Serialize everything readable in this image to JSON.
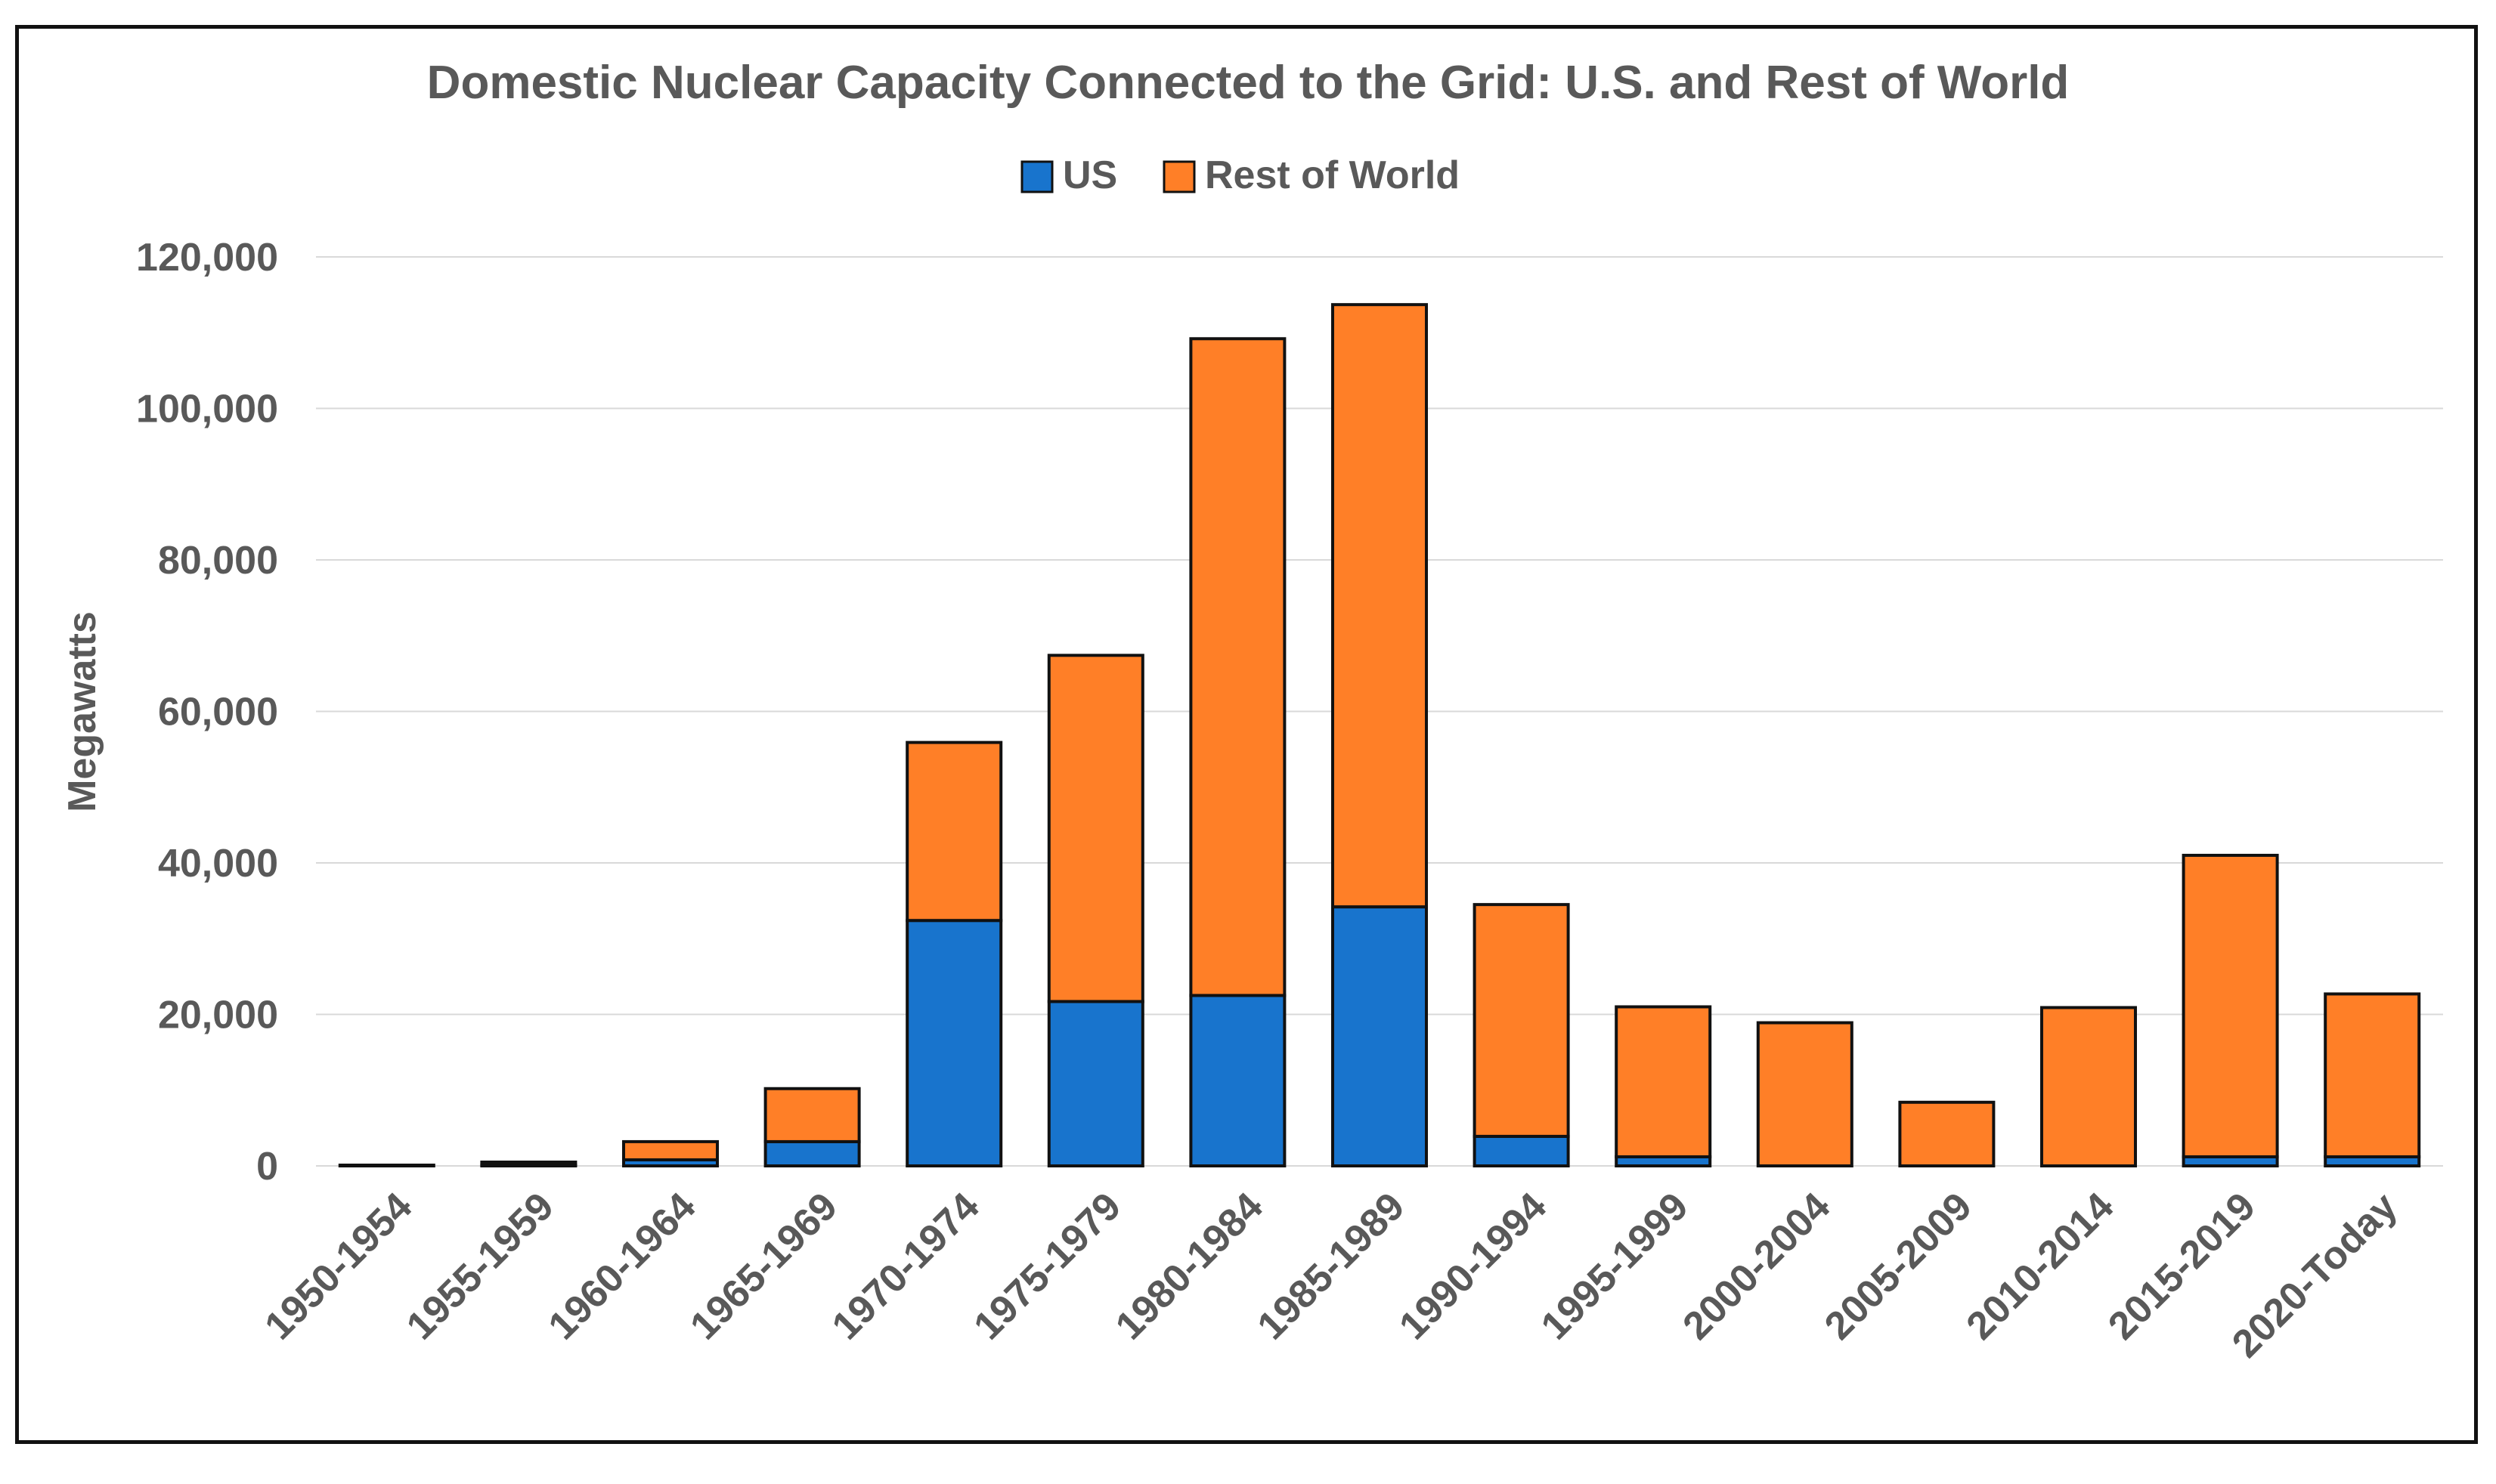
{
  "chart_data": {
    "type": "bar",
    "stacked": true,
    "title": "Domestic Nuclear Capacity Connected to the Grid: U.S. and Rest of World",
    "xlabel": "",
    "ylabel": "Megawatts",
    "ylim": [
      0,
      120000
    ],
    "yticks": [
      0,
      20000,
      40000,
      60000,
      80000,
      100000,
      120000
    ],
    "ytick_labels": [
      "0",
      "20,000",
      "40,000",
      "60,000",
      "80,000",
      "100,000",
      "120,000"
    ],
    "grid": true,
    "legend": "top-center",
    "categories": [
      "1950-1954",
      "1955-1959",
      "1960-1964",
      "1965-1969",
      "1970-1974",
      "1975-1979",
      "1980-1984",
      "1985-1989",
      "1990-1994",
      "1995-1999",
      "2000-2004",
      "2005-2009",
      "2010-2014",
      "2015-2019",
      "2020-Today"
    ],
    "series": [
      {
        "name": "US",
        "color": "#1874CD",
        "values": [
          0,
          100,
          800,
          3200,
          32400,
          21700,
          22500,
          34200,
          3900,
          1200,
          0,
          0,
          0,
          1200,
          1200
        ]
      },
      {
        "name": "Rest of World",
        "color": "#FF7F27",
        "values": [
          100,
          400,
          2400,
          7000,
          23500,
          45700,
          86700,
          79500,
          30600,
          19800,
          18900,
          8400,
          20900,
          39800,
          21500
        ]
      }
    ]
  }
}
